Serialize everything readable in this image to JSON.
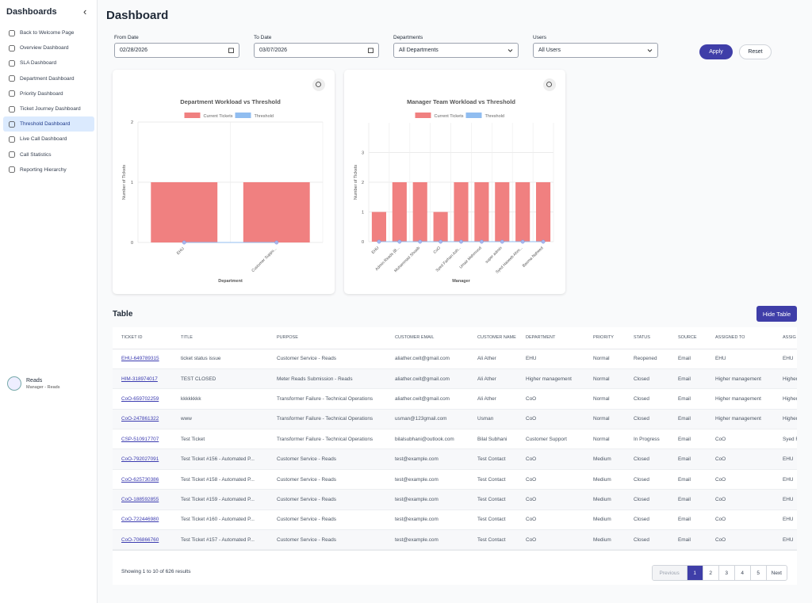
{
  "sidebar": {
    "title": "Dashboards",
    "collapse": "‹",
    "items": [
      "Back to Welcome Page",
      "Overview Dashboard",
      "SLA Dashboard",
      "Department Dashboard",
      "Priority Dashboard",
      "Ticket Journey Dashboard",
      "Threshold Dashboard",
      "Live Call Dashboard",
      "Call Statistics",
      "Reporting Hierarchy"
    ],
    "user": {
      "name": "Reads",
      "role": "Manager - Reads"
    }
  },
  "header": {
    "title": "Dashboard"
  },
  "filters": [
    {
      "label": "From Date",
      "value": "02/28/2026"
    },
    {
      "label": "To Date",
      "value": "03/07/2026"
    },
    {
      "label": "Departments",
      "value": "All Departments"
    },
    {
      "label": "Users",
      "value": "All Users"
    }
  ],
  "buttons": {
    "apply": "Apply",
    "reset": "Reset"
  },
  "chart_data": [
    {
      "type": "bar",
      "title": "Department Workload vs Threshold",
      "x_label": "Department",
      "y_label": "Number of Tickets",
      "categories": [
        "EHU",
        "Customer Suppo..."
      ],
      "series": [
        {
          "name": "Current Tickets",
          "color": "#f08080",
          "values": [
            1,
            1
          ]
        },
        {
          "name": "Threshold",
          "color": "#90bdf0",
          "type": "line",
          "values": [
            0,
            0
          ]
        }
      ],
      "ylim": [
        0,
        2
      ],
      "yticks": [
        0,
        1,
        2
      ],
      "grid": true,
      "legend": "top"
    },
    {
      "type": "bar",
      "title": "Manager Team Workload vs Threshold",
      "x_label": "Manager",
      "y_label": "Number of Tickets",
      "categories": [
        "EHU",
        "Admin Reads (B...",
        "Muhammad Shoaib",
        "CoO",
        "Syed Farhan Ash...",
        "Umair Mehmood",
        "super admin",
        "Syed Haseeb Ahm...",
        "Basma Naheed"
      ],
      "series": [
        {
          "name": "Current Tickets",
          "color": "#f08080",
          "values": [
            1,
            2,
            2,
            1,
            2,
            2,
            2,
            2,
            2
          ]
        },
        {
          "name": "Threshold",
          "color": "#90bdf0",
          "type": "line",
          "values": [
            0,
            0,
            0,
            0,
            0,
            0,
            0,
            0,
            0
          ]
        }
      ],
      "ylim": [
        0,
        4
      ],
      "yticks": [
        0,
        1,
        2,
        3
      ],
      "grid": true,
      "legend": "top"
    }
  ],
  "table": {
    "title": "Table",
    "toggle": "Hide Table",
    "columns": [
      "TICKET ID",
      "TITLE",
      "PURPOSE",
      "CUSTOMER EMAIL",
      "CUSTOMER NAME",
      "DEPARTMENT",
      "PRIORITY",
      "STATUS",
      "SOURCE",
      "ASSIGNED TO",
      "ASSIG"
    ],
    "rows": [
      [
        "EHU-649789315",
        "ticket status issue",
        "Customer Service - Reads",
        "aliather.cwit@gmail.com",
        "Ali Ather",
        "EHU",
        "Normal",
        "Reopened",
        "Email",
        "EHU",
        "EHU"
      ],
      [
        "HIM-318974017",
        "TEST CLOSED",
        "Meter Reads Submission - Reads",
        "aliather.cwit@gmail.com",
        "Ali Ather",
        "Higher management",
        "Normal",
        "Closed",
        "Email",
        "Higher management",
        "Higher"
      ],
      [
        "CoO-659702259",
        "kkkkkkkk",
        "Transformer Failure - Technical Operations",
        "aliather.cwit@gmail.com",
        "Ali Ather",
        "CoO",
        "Normal",
        "Closed",
        "Email",
        "Higher management",
        "Higher"
      ],
      [
        "CoO-247861322",
        "www",
        "Transformer Failure - Technical Operations",
        "usman@123gmail.com",
        "Usman",
        "CoO",
        "Normal",
        "Closed",
        "Email",
        "Higher management",
        "Higher"
      ],
      [
        "CSP-510917707",
        "Test Ticket",
        "Transformer Failure - Technical Operations",
        "bilalsubhani@outlook.com",
        "Bilal Subhani",
        "Customer Support",
        "Normal",
        "In Progress",
        "Email",
        "CoO",
        "Syed F"
      ],
      [
        "CoO-792027091",
        "Test Ticket #156 - Automated P...",
        "Customer Service - Reads",
        "test@example.com",
        "Test Contact",
        "CoO",
        "Medium",
        "Closed",
        "Email",
        "CoO",
        "EHU"
      ],
      [
        "CoO-625730386",
        "Test Ticket #158 - Automated P...",
        "Customer Service - Reads",
        "test@example.com",
        "Test Contact",
        "CoO",
        "Medium",
        "Closed",
        "Email",
        "CoO",
        "EHU"
      ],
      [
        "CoO-188592855",
        "Test Ticket #159 - Automated P...",
        "Customer Service - Reads",
        "test@example.com",
        "Test Contact",
        "CoO",
        "Medium",
        "Closed",
        "Email",
        "CoO",
        "EHU"
      ],
      [
        "CoO-722446980",
        "Test Ticket #160 - Automated P...",
        "Customer Service - Reads",
        "test@example.com",
        "Test Contact",
        "CoO",
        "Medium",
        "Closed",
        "Email",
        "CoO",
        "EHU"
      ],
      [
        "CoO-706866760",
        "Test Ticket #157 - Automated P...",
        "Customer Service - Reads",
        "test@example.com",
        "Test Contact",
        "CoO",
        "Medium",
        "Closed",
        "Email",
        "CoO",
        "EHU"
      ]
    ]
  },
  "footer": {
    "summary": "Showing 1 to 10 of 626 results",
    "pages": [
      "Previous",
      "1",
      "2",
      "3",
      "4",
      "5",
      "Next"
    ]
  }
}
